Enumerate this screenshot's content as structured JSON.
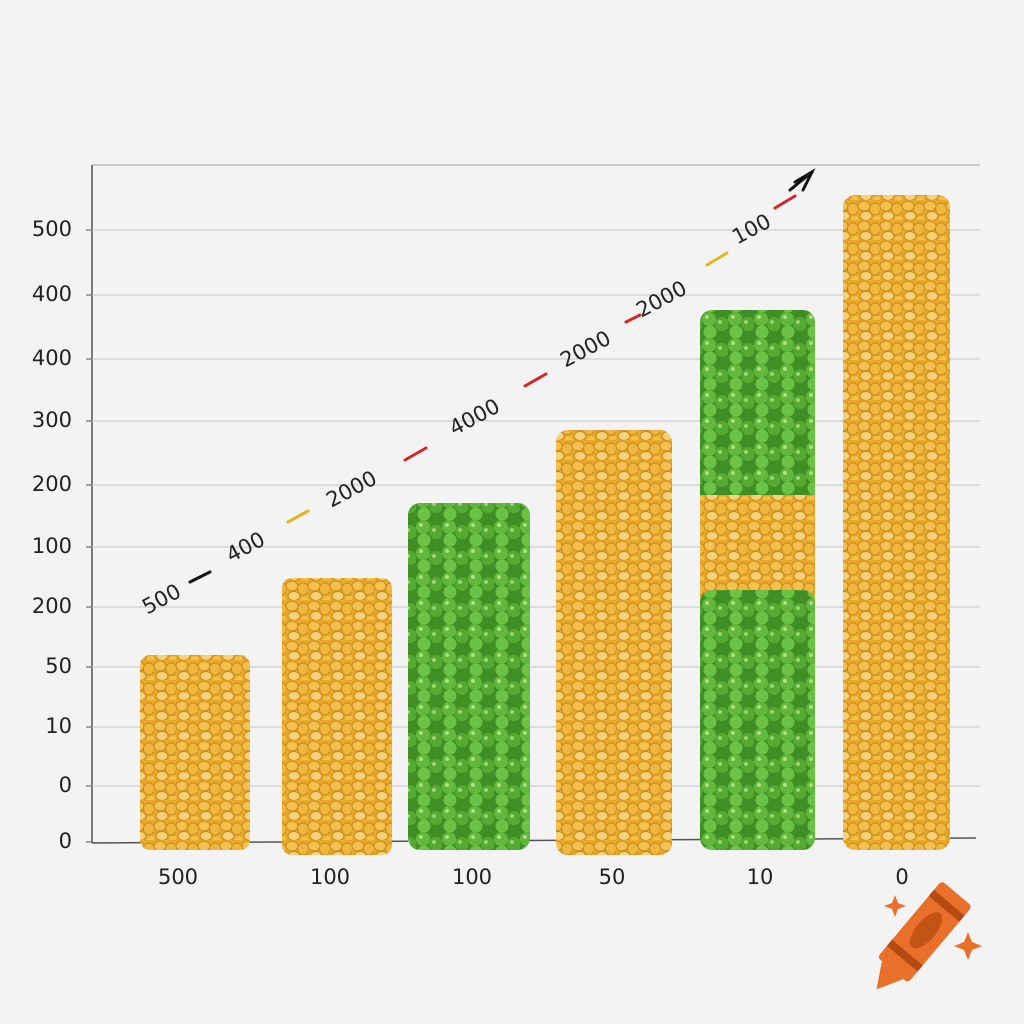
{
  "y_axis_labels": [
    "500",
    "400",
    "400",
    "300",
    "200",
    "100",
    "200",
    "50",
    "10",
    "0",
    "0"
  ],
  "x_axis_labels": [
    "500",
    "100",
    "100",
    "50",
    "10",
    "0"
  ],
  "trend_labels": [
    "500",
    "400",
    "2000",
    "4000",
    "2000",
    "2000",
    "100"
  ]
}
